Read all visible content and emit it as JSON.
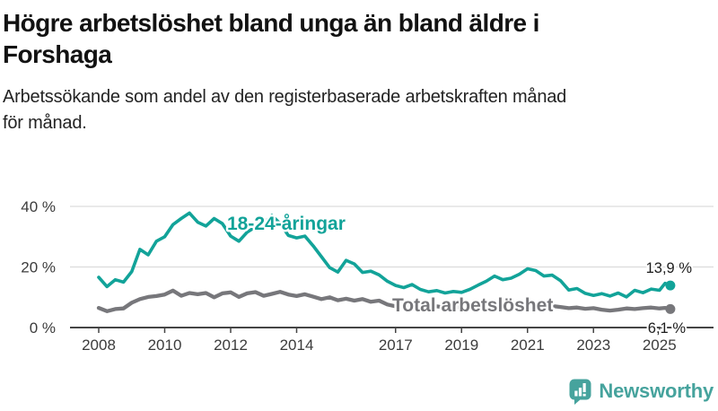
{
  "header": {
    "title": "Högre arbetslöshet bland unga än bland äldre i\nForshaga",
    "subtitle": "Arbetssökande som andel av den registerbaserade arbetskraften månad\nför månad."
  },
  "chart_data": {
    "type": "line",
    "grid": "horizontal",
    "ylim": [
      0,
      40
    ],
    "x_range_years": [
      2008,
      2025.33
    ],
    "x_ticks": [
      2008,
      2010,
      2012,
      2014,
      2017,
      2019,
      2021,
      2023,
      2025
    ],
    "y_ticks": [
      {
        "value": 0,
        "label": "0 %"
      },
      {
        "value": 20,
        "label": "20 %"
      },
      {
        "value": 40,
        "label": "40 %"
      }
    ],
    "series": [
      {
        "id": "youth",
        "name": "18-24-åringar",
        "color": "#12a399",
        "end_label": "13,9 %",
        "end_value": 13.9,
        "points": [
          [
            2008.0,
            16.6
          ],
          [
            2008.25,
            13.5
          ],
          [
            2008.5,
            15.8
          ],
          [
            2008.75,
            15.0
          ],
          [
            2009.0,
            18.5
          ],
          [
            2009.25,
            25.8
          ],
          [
            2009.5,
            24.0
          ],
          [
            2009.75,
            28.5
          ],
          [
            2010.0,
            30.0
          ],
          [
            2010.25,
            34.0
          ],
          [
            2010.5,
            36.0
          ],
          [
            2010.75,
            37.8
          ],
          [
            2011.0,
            34.8
          ],
          [
            2011.25,
            33.5
          ],
          [
            2011.5,
            36.0
          ],
          [
            2011.75,
            34.3
          ],
          [
            2012.0,
            30.2
          ],
          [
            2012.25,
            28.5
          ],
          [
            2012.5,
            31.5
          ],
          [
            2012.75,
            33.2
          ],
          [
            2013.0,
            34.3
          ],
          [
            2013.25,
            37.0
          ],
          [
            2013.5,
            34.3
          ],
          [
            2013.75,
            30.4
          ],
          [
            2014.0,
            29.6
          ],
          [
            2014.25,
            30.2
          ],
          [
            2014.5,
            27.0
          ],
          [
            2014.75,
            23.4
          ],
          [
            2015.0,
            19.8
          ],
          [
            2015.25,
            18.3
          ],
          [
            2015.5,
            22.2
          ],
          [
            2015.75,
            21.0
          ],
          [
            2016.0,
            18.2
          ],
          [
            2016.25,
            18.6
          ],
          [
            2016.5,
            17.4
          ],
          [
            2016.75,
            15.3
          ],
          [
            2017.0,
            13.9
          ],
          [
            2017.25,
            13.2
          ],
          [
            2017.5,
            14.2
          ],
          [
            2017.75,
            12.6
          ],
          [
            2018.0,
            11.8
          ],
          [
            2018.25,
            12.2
          ],
          [
            2018.5,
            11.4
          ],
          [
            2018.75,
            11.9
          ],
          [
            2019.0,
            11.6
          ],
          [
            2019.25,
            12.6
          ],
          [
            2019.5,
            14.0
          ],
          [
            2019.75,
            15.3
          ],
          [
            2020.0,
            17.0
          ],
          [
            2020.25,
            15.8
          ],
          [
            2020.5,
            16.3
          ],
          [
            2020.75,
            17.6
          ],
          [
            2021.0,
            19.4
          ],
          [
            2021.25,
            18.8
          ],
          [
            2021.5,
            17.0
          ],
          [
            2021.75,
            17.3
          ],
          [
            2022.0,
            15.5
          ],
          [
            2022.25,
            12.4
          ],
          [
            2022.5,
            12.9
          ],
          [
            2022.75,
            11.3
          ],
          [
            2023.0,
            10.6
          ],
          [
            2023.25,
            11.2
          ],
          [
            2023.5,
            10.4
          ],
          [
            2023.75,
            11.4
          ],
          [
            2024.0,
            10.1
          ],
          [
            2024.25,
            12.3
          ],
          [
            2024.5,
            11.5
          ],
          [
            2024.75,
            12.7
          ],
          [
            2025.0,
            12.3
          ],
          [
            2025.17,
            14.6
          ],
          [
            2025.33,
            13.9
          ]
        ]
      },
      {
        "id": "total",
        "name": "Total arbetslöshet",
        "color": "#77777b",
        "end_label": "6,1 %",
        "end_value": 6.1,
        "points": [
          [
            2008.0,
            6.5
          ],
          [
            2008.25,
            5.4
          ],
          [
            2008.5,
            6.1
          ],
          [
            2008.75,
            6.3
          ],
          [
            2009.0,
            8.2
          ],
          [
            2009.25,
            9.4
          ],
          [
            2009.5,
            10.1
          ],
          [
            2009.75,
            10.4
          ],
          [
            2010.0,
            10.9
          ],
          [
            2010.25,
            12.2
          ],
          [
            2010.5,
            10.5
          ],
          [
            2010.75,
            11.4
          ],
          [
            2011.0,
            11.0
          ],
          [
            2011.25,
            11.4
          ],
          [
            2011.5,
            10.0
          ],
          [
            2011.75,
            11.3
          ],
          [
            2012.0,
            11.6
          ],
          [
            2012.25,
            10.1
          ],
          [
            2012.5,
            11.3
          ],
          [
            2012.75,
            11.7
          ],
          [
            2013.0,
            10.5
          ],
          [
            2013.25,
            11.1
          ],
          [
            2013.5,
            11.8
          ],
          [
            2013.75,
            10.9
          ],
          [
            2014.0,
            10.4
          ],
          [
            2014.25,
            11.0
          ],
          [
            2014.5,
            10.2
          ],
          [
            2014.75,
            9.4
          ],
          [
            2015.0,
            10.0
          ],
          [
            2015.25,
            9.0
          ],
          [
            2015.5,
            9.5
          ],
          [
            2015.75,
            8.9
          ],
          [
            2016.0,
            9.4
          ],
          [
            2016.25,
            8.5
          ],
          [
            2016.5,
            8.9
          ],
          [
            2016.75,
            7.6
          ],
          [
            2017.0,
            7.0
          ],
          [
            2017.25,
            7.5
          ],
          [
            2017.5,
            7.2
          ],
          [
            2017.75,
            6.9
          ],
          [
            2018.0,
            6.6
          ],
          [
            2018.25,
            7.0
          ],
          [
            2018.5,
            6.6
          ],
          [
            2018.75,
            6.8
          ],
          [
            2019.0,
            6.6
          ],
          [
            2019.25,
            7.0
          ],
          [
            2019.5,
            7.2
          ],
          [
            2019.75,
            7.4
          ],
          [
            2020.0,
            7.7
          ],
          [
            2020.25,
            8.5
          ],
          [
            2020.5,
            8.2
          ],
          [
            2020.75,
            8.1
          ],
          [
            2021.0,
            8.4
          ],
          [
            2021.25,
            8.0
          ],
          [
            2021.5,
            7.5
          ],
          [
            2021.75,
            7.1
          ],
          [
            2022.0,
            6.8
          ],
          [
            2022.25,
            6.4
          ],
          [
            2022.5,
            6.6
          ],
          [
            2022.75,
            6.2
          ],
          [
            2023.0,
            6.4
          ],
          [
            2023.25,
            5.9
          ],
          [
            2023.5,
            5.6
          ],
          [
            2023.75,
            5.9
          ],
          [
            2024.0,
            6.3
          ],
          [
            2024.25,
            6.1
          ],
          [
            2024.5,
            6.4
          ],
          [
            2024.75,
            6.6
          ],
          [
            2025.0,
            6.3
          ],
          [
            2025.17,
            6.5
          ],
          [
            2025.33,
            6.1
          ]
        ]
      }
    ],
    "colors": {
      "accent_teal": "#12a399",
      "series_gray": "#77777b",
      "gridline": "#dcdcdc",
      "axis": "#454545"
    }
  },
  "footer": {
    "brand": "Newsworthy",
    "brand_color": "#46a39d",
    "logo_icon": "bar-chart-speech-bubble"
  }
}
